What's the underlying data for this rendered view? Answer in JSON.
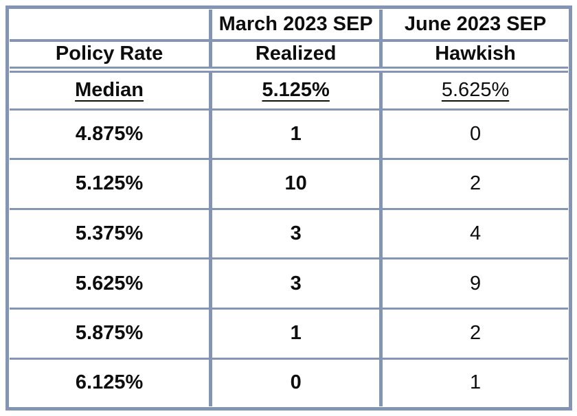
{
  "colors": {
    "header_bg": "#d3e3ee",
    "header_text": "#1e3464",
    "border": "#8494b4",
    "body_text": "#0d0d0d"
  },
  "chart_data": {
    "type": "table",
    "title": "",
    "header_row_1": [
      "",
      "March 2023 SEP",
      "June 2023 SEP"
    ],
    "header_row_2": [
      "Policy Rate",
      "Realized",
      "Hawkish"
    ],
    "median_row": [
      "Median",
      "5.125%",
      "5.625%"
    ],
    "distribution_rows": [
      [
        "4.875%",
        "1",
        "0"
      ],
      [
        "5.125%",
        "10",
        "2"
      ],
      [
        "5.375%",
        "3",
        "4"
      ],
      [
        "5.625%",
        "3",
        "9"
      ],
      [
        "5.875%",
        "1",
        "2"
      ],
      [
        "6.125%",
        "0",
        "1"
      ]
    ]
  }
}
